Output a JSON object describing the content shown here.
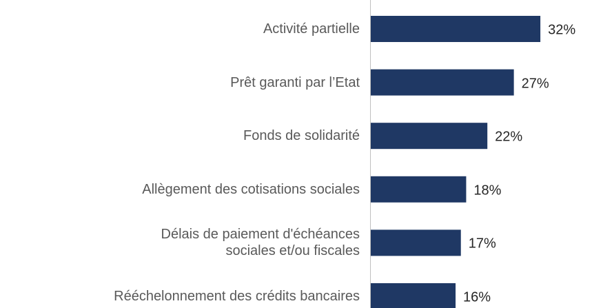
{
  "chart_data": {
    "type": "bar",
    "orientation": "horizontal",
    "categories": [
      "Activité partielle",
      "Prêt garanti par l’Etat",
      "Fonds de solidarité",
      "Allègement des cotisations sociales",
      "Délais de paiement d'échéances\nsociales et/ou fiscales",
      "Rééchelonnement des crédits bancaires"
    ],
    "values": [
      32,
      27,
      22,
      18,
      17,
      16
    ],
    "value_labels": [
      "32%",
      "27%",
      "22%",
      "18%",
      "17%",
      "16%"
    ],
    "color": "#1f3864"
  }
}
